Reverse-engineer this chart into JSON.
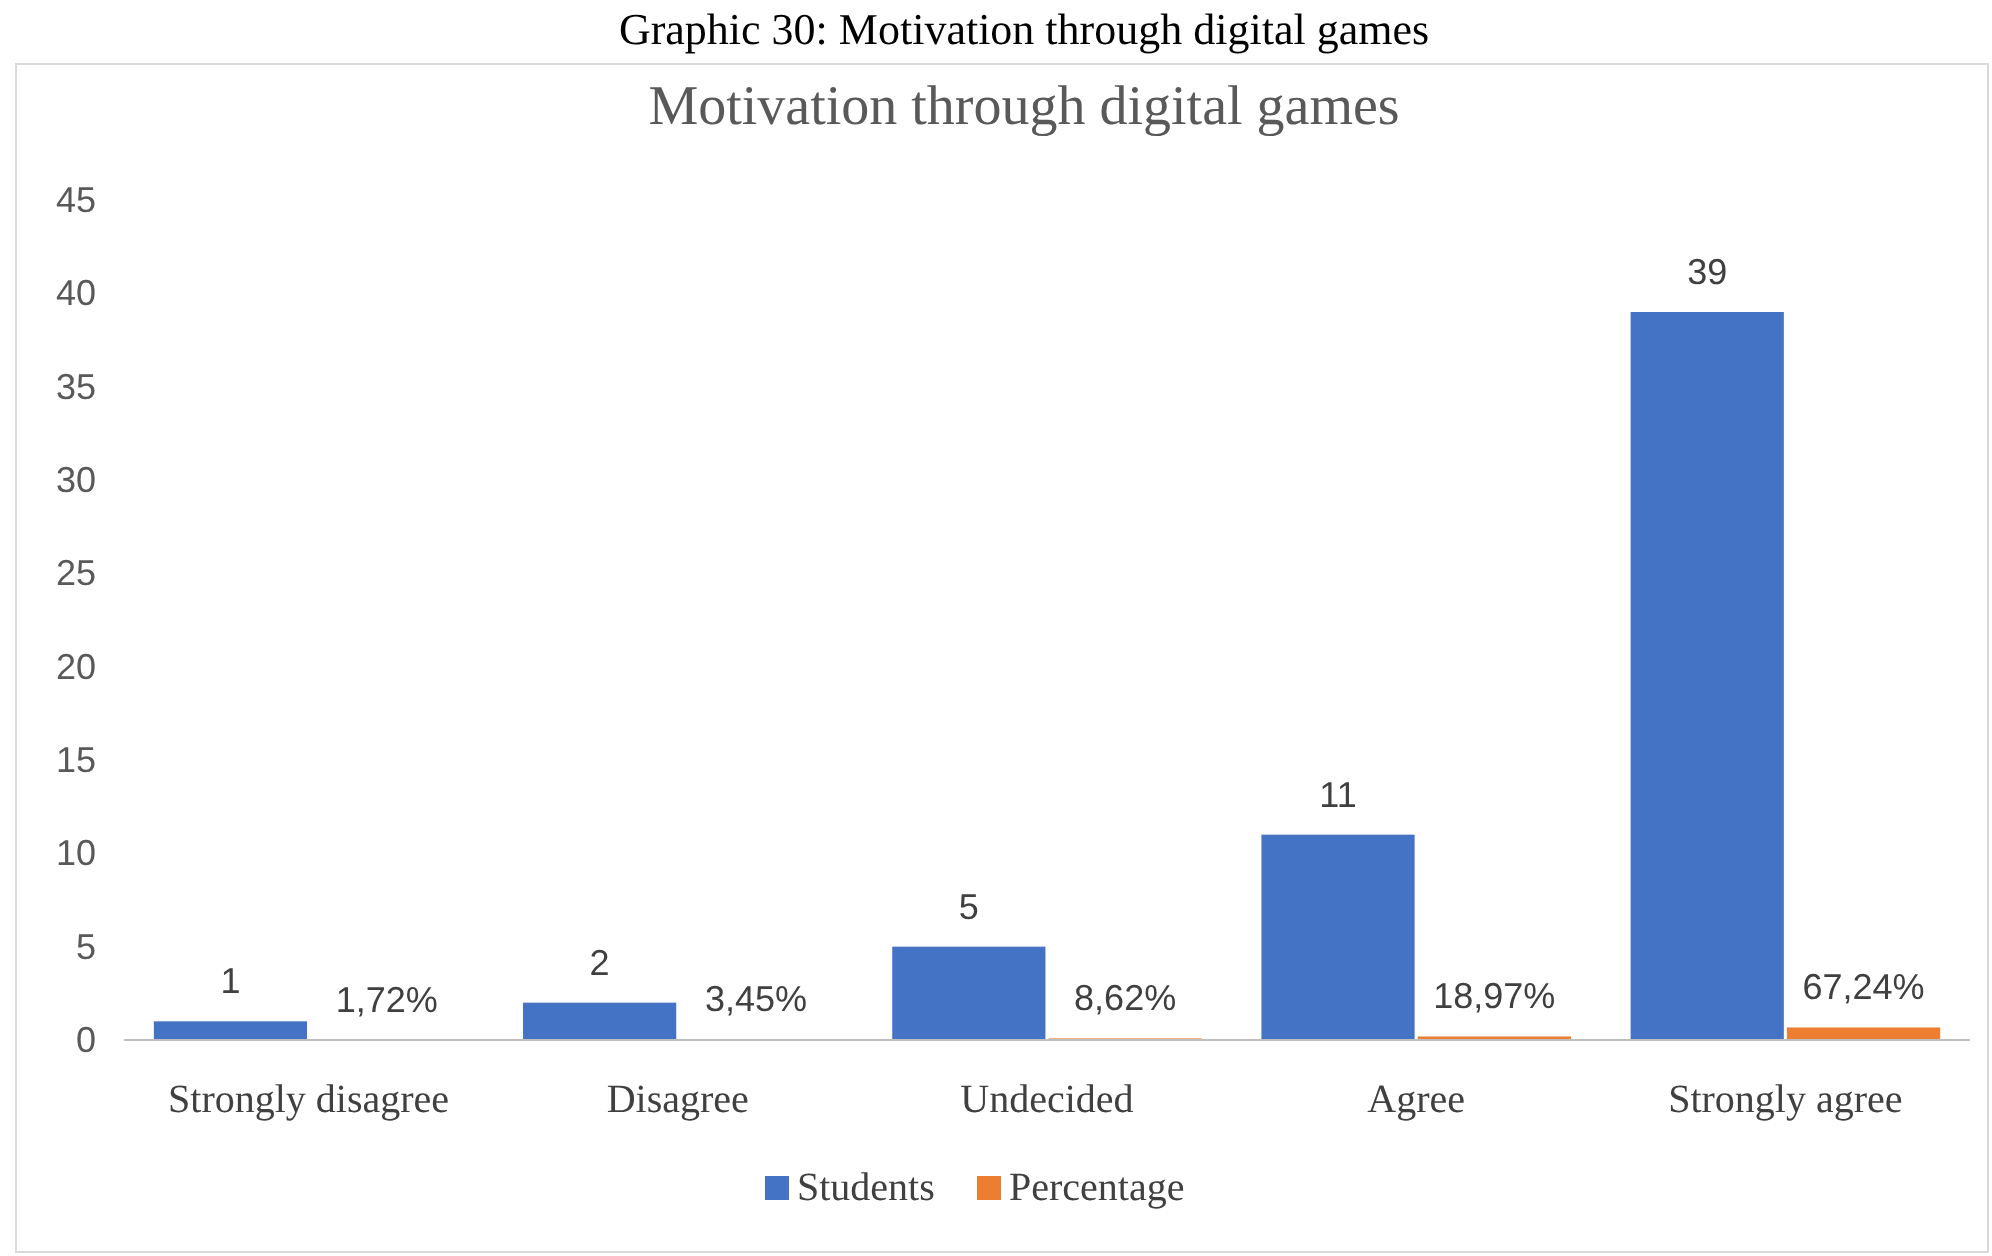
{
  "chart_data": {
    "type": "bar",
    "title": "Motivation through digital games",
    "annotations": [
      "Graphic 30: Motivation through digital games"
    ],
    "categories": [
      "Strongly disagree",
      "Disagree",
      "Undecided",
      "Agree",
      "Strongly agree"
    ],
    "series": [
      {
        "name": "Students",
        "color": "#4472c4",
        "values": [
          1,
          2,
          5,
          11,
          39
        ],
        "value_labels": [
          "1",
          "2",
          "5",
          "11",
          "39"
        ]
      },
      {
        "name": "Percentage",
        "color": "#ed7d31",
        "values": [
          0.0172,
          0.0345,
          0.0862,
          0.1897,
          0.6724
        ],
        "value_labels": [
          "1,72%",
          "3,45%",
          "8,62%",
          "18,97%",
          "67,24%"
        ]
      }
    ],
    "ylim": [
      0,
      45
    ],
    "yticks": [
      0,
      5,
      10,
      15,
      20,
      25,
      30,
      35,
      40,
      45
    ],
    "grid": false,
    "legend": "bottom"
  }
}
